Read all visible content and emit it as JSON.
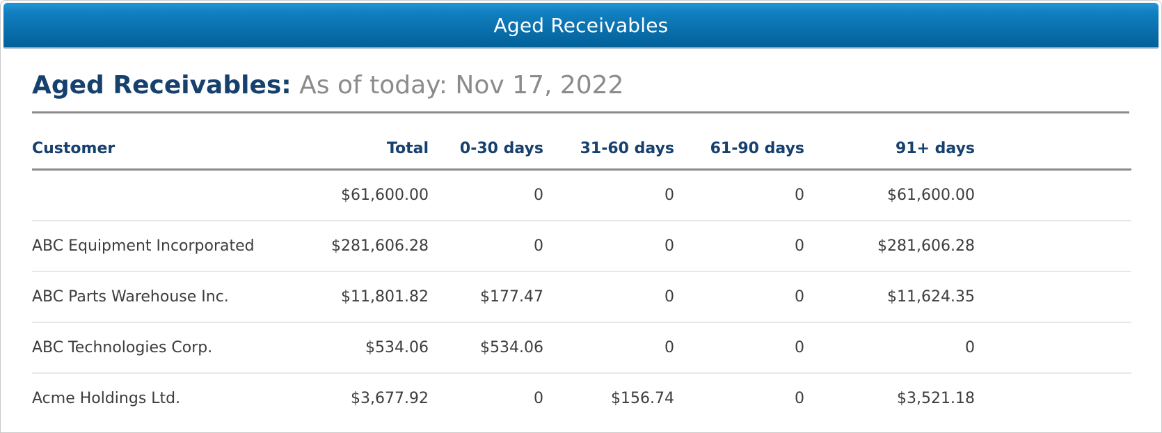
{
  "window": {
    "titlebar_label": "Aged Receivables"
  },
  "report": {
    "title": "Aged Receivables:",
    "subtitle": "As of today: Nov 17, 2022"
  },
  "table": {
    "columns": [
      "Customer",
      "Total",
      "0-30 days",
      "31-60 days",
      "61-90 days",
      "91+ days"
    ],
    "rows": [
      [
        "",
        "$61,600.00",
        "0",
        "0",
        "0",
        "$61,600.00"
      ],
      [
        "ABC Equipment Incorporated",
        "$281,606.28",
        "0",
        "0",
        "0",
        "$281,606.28"
      ],
      [
        "ABC Parts Warehouse Inc.",
        "$11,801.82",
        "$177.47",
        "0",
        "0",
        "$11,624.35"
      ],
      [
        "ABC Technologies Corp.",
        "$534.06",
        "$534.06",
        "0",
        "0",
        "0"
      ],
      [
        "Acme Holdings Ltd.",
        "$3,677.92",
        "0",
        "$156.74",
        "0",
        "$3,521.18"
      ]
    ]
  },
  "colors": {
    "titlebar_gradient_top": "#2496d6",
    "titlebar_gradient_bottom": "#026098",
    "heading_navy": "#16406d",
    "subtitle_gray": "#8b8b8b",
    "rule_gray": "#8a8a8a",
    "row_separator": "#e7e7e7",
    "body_text": "#3d3d3d"
  }
}
